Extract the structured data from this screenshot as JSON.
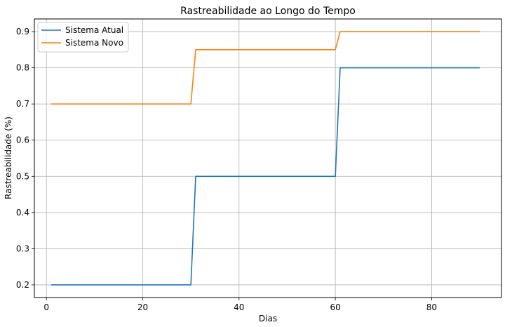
{
  "chart_data": {
    "type": "line",
    "title": "Rastreabilidade ao Longo do Tempo",
    "xlabel": "Dias",
    "ylabel": "Rastreabilidade (%)",
    "xlim": [
      -2.5,
      94.5
    ],
    "ylim": [
      0.165,
      0.935
    ],
    "xticks": [
      0,
      20,
      40,
      60,
      80
    ],
    "yticks": [
      0.2,
      0.3,
      0.4,
      0.5,
      0.6,
      0.7,
      0.8,
      0.9
    ],
    "grid": true,
    "legend_position": "top-left",
    "series": [
      {
        "name": "Sistema Atual",
        "color": "#1f77b4",
        "x": [
          1,
          30,
          31,
          60,
          61,
          90
        ],
        "y": [
          0.2,
          0.2,
          0.5,
          0.5,
          0.8,
          0.8
        ]
      },
      {
        "name": "Sistema Novo",
        "color": "#ff7f0e",
        "x": [
          1,
          30,
          31,
          60,
          61,
          90
        ],
        "y": [
          0.7,
          0.7,
          0.85,
          0.85,
          0.9,
          0.9
        ]
      }
    ]
  }
}
